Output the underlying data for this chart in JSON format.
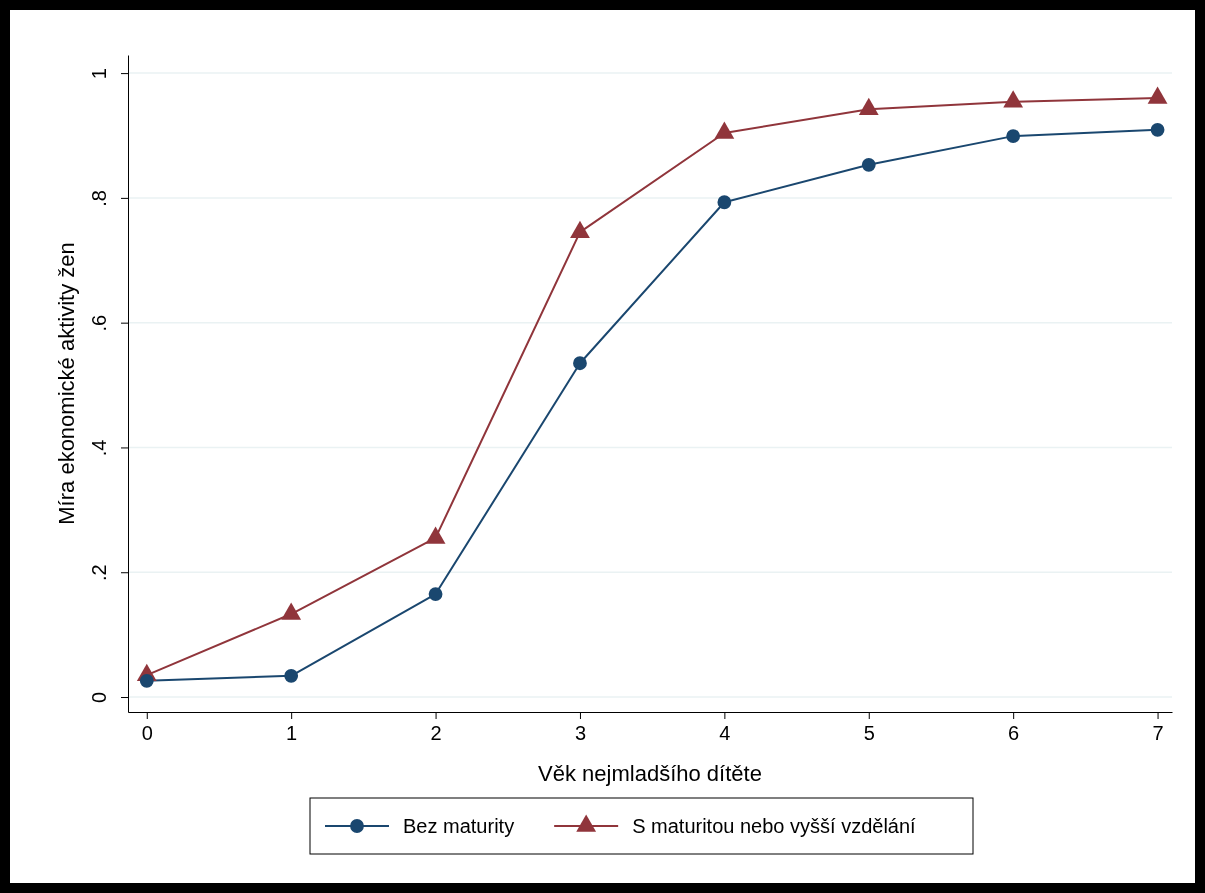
{
  "chart_data": {
    "type": "line",
    "xlabel": "Věk nejmladšího dítěte",
    "ylabel": "Míra ekonomické aktivity žen",
    "x": [
      0,
      1,
      2,
      3,
      4,
      5,
      6,
      7
    ],
    "series": [
      {
        "name": "Bez maturity",
        "color": "#1a476f",
        "marker": "circle",
        "values": [
          0.026,
          0.034,
          0.165,
          0.535,
          0.793,
          0.853,
          0.899,
          0.909
        ]
      },
      {
        "name": "S maturitou nebo vyšší vzdělání",
        "color": "#90353b",
        "marker": "triangle",
        "values": [
          0.035,
          0.133,
          0.255,
          0.745,
          0.904,
          0.942,
          0.954,
          0.96
        ]
      }
    ],
    "xlim": [
      -0.13,
      7.1
    ],
    "xticks": [
      0,
      1,
      2,
      3,
      4,
      5,
      6,
      7
    ],
    "ylim": [
      -0.024,
      1.029
    ],
    "yticks": [
      {
        "value": 0,
        "label": "0"
      },
      {
        "value": 0.2,
        "label": ".2"
      },
      {
        "value": 0.4,
        "label": ".4"
      },
      {
        "value": 0.6,
        "label": ".6"
      },
      {
        "value": 0.8,
        "label": ".8"
      },
      {
        "value": 1,
        "label": "1"
      }
    ],
    "grid": "y",
    "legend": "bottom",
    "line_style": "solid"
  }
}
